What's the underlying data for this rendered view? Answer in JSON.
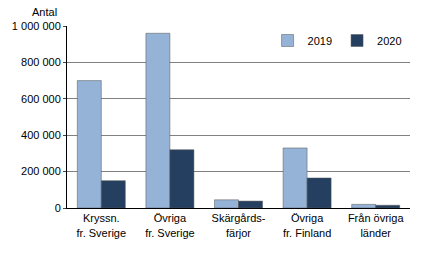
{
  "chart_data": {
    "type": "bar",
    "ylabel": "Antal",
    "categories": [
      "Kryssn.\nfr. Sverige",
      "Övriga\nfr. Sverige",
      "Skärgårds-\nfärjor",
      "Övriga\nfr. Finland",
      "Från övriga\nländer"
    ],
    "series": [
      {
        "name": "2019",
        "color": "#95b3d7",
        "values": [
          700000,
          960000,
          45000,
          330000,
          20000
        ]
      },
      {
        "name": "2020",
        "color": "#243f60",
        "values": [
          150000,
          320000,
          38000,
          165000,
          15000
        ]
      }
    ],
    "ylim": [
      0,
      1000000
    ],
    "yticks": [
      0,
      {
        "value": 200000,
        "label": "200 000"
      },
      {
        "value": 400000,
        "label": "400 000"
      },
      {
        "value": 600000,
        "label": "600 000"
      },
      {
        "value": 800000,
        "label": "800 000"
      },
      {
        "value": 1000000,
        "label": "1 000 000"
      }
    ],
    "grid": true,
    "legend": "top right"
  }
}
